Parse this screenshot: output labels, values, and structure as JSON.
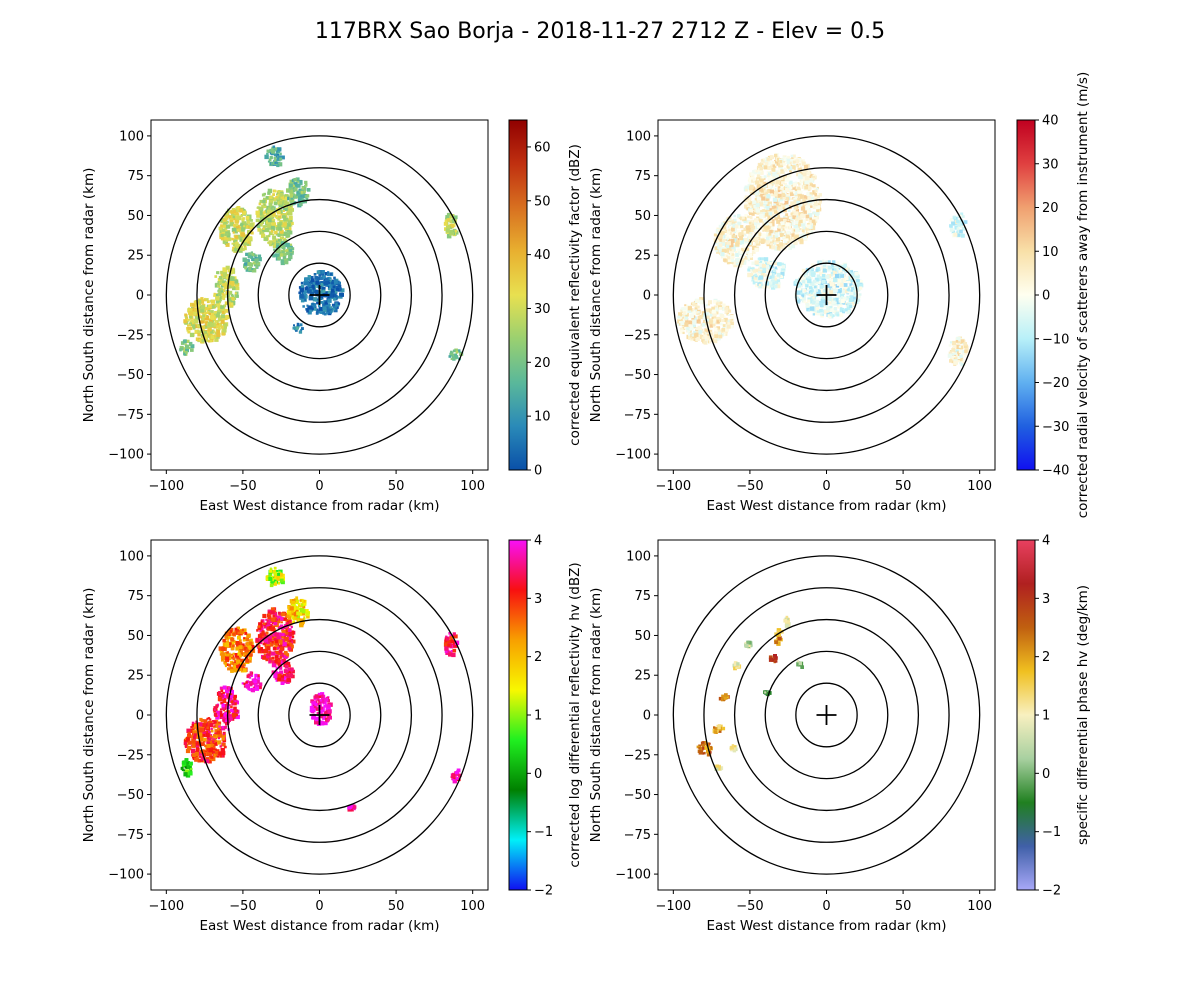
{
  "figure": {
    "title": "117BRX Sao Borja - 2018-11-27 2712 Z -  Elev = 0.5"
  },
  "chart_data": [
    {
      "type": "heatmap",
      "panel": "top-left",
      "field": "reflectivity",
      "xlabel": "East West distance from radar (km)",
      "ylabel": "North South distance from radar (km)",
      "xlim": [
        -110,
        110
      ],
      "ylim": [
        -110,
        110
      ],
      "xticks": [
        -100,
        -50,
        0,
        50,
        100
      ],
      "yticks": [
        -100,
        -75,
        -50,
        -25,
        0,
        25,
        50,
        75,
        100
      ],
      "range_rings_km": [
        20,
        40,
        60,
        80,
        100
      ],
      "colorbar": {
        "label": "corrected equivalent reflectivity factor (dBZ)",
        "range": [
          0,
          65
        ],
        "ticks": [
          0,
          10,
          20,
          30,
          40,
          50,
          60
        ],
        "colors": [
          "#0a50a8",
          "#2a8ab8",
          "#5ab89a",
          "#9ad070",
          "#e8e050",
          "#e8b030",
          "#d87020",
          "#c03010",
          "#900000"
        ]
      },
      "echoes": [
        {
          "x": -75,
          "y": -15,
          "rx": 14,
          "ry": 14,
          "value": 32
        },
        {
          "x": -62,
          "y": 5,
          "rx": 8,
          "ry": 14,
          "value": 28
        },
        {
          "x": -55,
          "y": 42,
          "rx": 11,
          "ry": 14,
          "value": 30
        },
        {
          "x": -30,
          "y": 50,
          "rx": 12,
          "ry": 18,
          "value": 28
        },
        {
          "x": -15,
          "y": 66,
          "rx": 7,
          "ry": 9,
          "value": 20
        },
        {
          "x": -30,
          "y": 88,
          "rx": 6,
          "ry": 6,
          "value": 15
        },
        {
          "x": -25,
          "y": 28,
          "rx": 7,
          "ry": 7,
          "value": 22
        },
        {
          "x": -45,
          "y": 22,
          "rx": 6,
          "ry": 6,
          "value": 18
        },
        {
          "x": -88,
          "y": -32,
          "rx": 4,
          "ry": 5,
          "value": 22
        },
        {
          "x": 85,
          "y": 45,
          "rx": 4,
          "ry": 8,
          "value": 28
        },
        {
          "x": 88,
          "y": -37,
          "rx": 4,
          "ry": 4,
          "value": 20
        },
        {
          "x": 0,
          "y": 2,
          "rx": 14,
          "ry": 14,
          "value": 5
        },
        {
          "x": -15,
          "y": -20,
          "rx": 3,
          "ry": 3,
          "value": 8
        }
      ]
    },
    {
      "type": "heatmap",
      "panel": "top-right",
      "field": "velocity",
      "xlabel": "East West distance from radar (km)",
      "ylabel": "North South distance from radar (km)",
      "xlim": [
        -110,
        110
      ],
      "ylim": [
        -110,
        110
      ],
      "xticks": [
        -100,
        -50,
        0,
        50,
        100
      ],
      "yticks": [
        -100,
        -75,
        -50,
        -25,
        0,
        25,
        50,
        75,
        100
      ],
      "range_rings_km": [
        20,
        40,
        60,
        80,
        100
      ],
      "colorbar": {
        "label": "corrected radial velocity of scatterers away from instrument (m/s)",
        "range": [
          -40,
          40
        ],
        "ticks": [
          -40,
          -30,
          -20,
          -10,
          0,
          10,
          20,
          30,
          40
        ],
        "colors": [
          "#1010f0",
          "#2060e0",
          "#60b0f0",
          "#b8f0f8",
          "#fffff0",
          "#f8e0a8",
          "#f0a070",
          "#e04040",
          "#c00020"
        ]
      },
      "echoes": [
        {
          "x": -30,
          "y": 60,
          "rx": 25,
          "ry": 30,
          "value": 4
        },
        {
          "x": -80,
          "y": -15,
          "rx": 18,
          "ry": 14,
          "value": 4
        },
        {
          "x": -60,
          "y": 35,
          "rx": 14,
          "ry": 16,
          "value": 3
        },
        {
          "x": 0,
          "y": 5,
          "rx": 22,
          "ry": 18,
          "value": -5
        },
        {
          "x": -40,
          "y": 15,
          "rx": 12,
          "ry": 10,
          "value": -4
        },
        {
          "x": 85,
          "y": -35,
          "rx": 6,
          "ry": 10,
          "value": 3
        },
        {
          "x": 85,
          "y": 45,
          "rx": 5,
          "ry": 8,
          "value": -5
        }
      ]
    },
    {
      "type": "heatmap",
      "panel": "bottom-left",
      "field": "differential_reflectivity",
      "xlabel": "East West distance from radar (km)",
      "ylabel": "North South distance from radar (km)",
      "xlim": [
        -110,
        110
      ],
      "ylim": [
        -110,
        110
      ],
      "xticks": [
        -100,
        -50,
        0,
        50,
        100
      ],
      "yticks": [
        -100,
        -75,
        -50,
        -25,
        0,
        25,
        50,
        75,
        100
      ],
      "range_rings_km": [
        20,
        40,
        60,
        80,
        100
      ],
      "colorbar": {
        "label": "corrected log differential reflectivity hv (dBZ)",
        "range": [
          -2,
          4
        ],
        "ticks": [
          -2,
          -1,
          0,
          1,
          2,
          3,
          4
        ],
        "colors": [
          "#1010f0",
          "#00f0f8",
          "#008000",
          "#20f020",
          "#f8f800",
          "#f8a000",
          "#f81010",
          "#f810f8"
        ]
      },
      "echoes": [
        {
          "x": -75,
          "y": -15,
          "rx": 14,
          "ry": 14,
          "value": 3.0
        },
        {
          "x": -62,
          "y": 5,
          "rx": 8,
          "ry": 14,
          "value": 3.5
        },
        {
          "x": -55,
          "y": 42,
          "rx": 11,
          "ry": 14,
          "value": 2.5
        },
        {
          "x": -30,
          "y": 50,
          "rx": 12,
          "ry": 18,
          "value": 3.2
        },
        {
          "x": -15,
          "y": 66,
          "rx": 7,
          "ry": 9,
          "value": 1.8
        },
        {
          "x": -30,
          "y": 88,
          "rx": 6,
          "ry": 6,
          "value": 1.2
        },
        {
          "x": -25,
          "y": 28,
          "rx": 7,
          "ry": 7,
          "value": 3.6
        },
        {
          "x": -45,
          "y": 22,
          "rx": 6,
          "ry": 6,
          "value": 3.8
        },
        {
          "x": -88,
          "y": -32,
          "rx": 4,
          "ry": 5,
          "value": 0.5
        },
        {
          "x": 85,
          "y": 45,
          "rx": 4,
          "ry": 8,
          "value": 3.4
        },
        {
          "x": 88,
          "y": -37,
          "rx": 4,
          "ry": 4,
          "value": 3.8
        },
        {
          "x": 0,
          "y": 5,
          "rx": 7,
          "ry": 10,
          "value": 3.9
        },
        {
          "x": 20,
          "y": -57,
          "rx": 2,
          "ry": 2,
          "value": 3.9
        }
      ]
    },
    {
      "type": "heatmap",
      "panel": "bottom-right",
      "field": "specific_differential_phase",
      "xlabel": "East West distance from radar (km)",
      "ylabel": "North South distance from radar (km)",
      "xlim": [
        -110,
        110
      ],
      "ylim": [
        -110,
        110
      ],
      "xticks": [
        -100,
        -50,
        0,
        50,
        100
      ],
      "yticks": [
        -100,
        -75,
        -50,
        -25,
        0,
        25,
        50,
        75,
        100
      ],
      "range_rings_km": [
        20,
        40,
        60,
        80,
        100
      ],
      "colorbar": {
        "label": "specific differential phase hv (deg/km)",
        "range": [
          -2,
          4
        ],
        "ticks": [
          -2,
          -1,
          0,
          1,
          2,
          3,
          4
        ],
        "colors": [
          "#a8a8f8",
          "#4060a8",
          "#208020",
          "#a8d0a0",
          "#f8f0c0",
          "#f0c020",
          "#c06010",
          "#b02020",
          "#e84060"
        ]
      },
      "echoes": [
        {
          "x": -80,
          "y": -20,
          "rx": 5,
          "ry": 4,
          "value": 2.5
        },
        {
          "x": -72,
          "y": -8,
          "rx": 4,
          "ry": 3,
          "value": 1.8
        },
        {
          "x": -68,
          "y": 12,
          "rx": 3,
          "ry": 2,
          "value": 2.2
        },
        {
          "x": -60,
          "y": 32,
          "rx": 2,
          "ry": 2,
          "value": 1.0
        },
        {
          "x": -62,
          "y": -20,
          "rx": 2,
          "ry": 2,
          "value": 1.2
        },
        {
          "x": -52,
          "y": 45,
          "rx": 2,
          "ry": 2,
          "value": 0.5
        },
        {
          "x": -35,
          "y": 37,
          "rx": 3,
          "ry": 3,
          "value": 2.6
        },
        {
          "x": -32,
          "y": 50,
          "rx": 3,
          "ry": 5,
          "value": 2.0
        },
        {
          "x": -27,
          "y": 60,
          "rx": 2,
          "ry": 3,
          "value": 0.8
        },
        {
          "x": -18,
          "y": 33,
          "rx": 2,
          "ry": 2,
          "value": 0.2
        },
        {
          "x": -40,
          "y": 15,
          "rx": 2,
          "ry": 1,
          "value": -0.2
        },
        {
          "x": -72,
          "y": -32,
          "rx": 2,
          "ry": 1,
          "value": 1.0
        }
      ]
    }
  ]
}
